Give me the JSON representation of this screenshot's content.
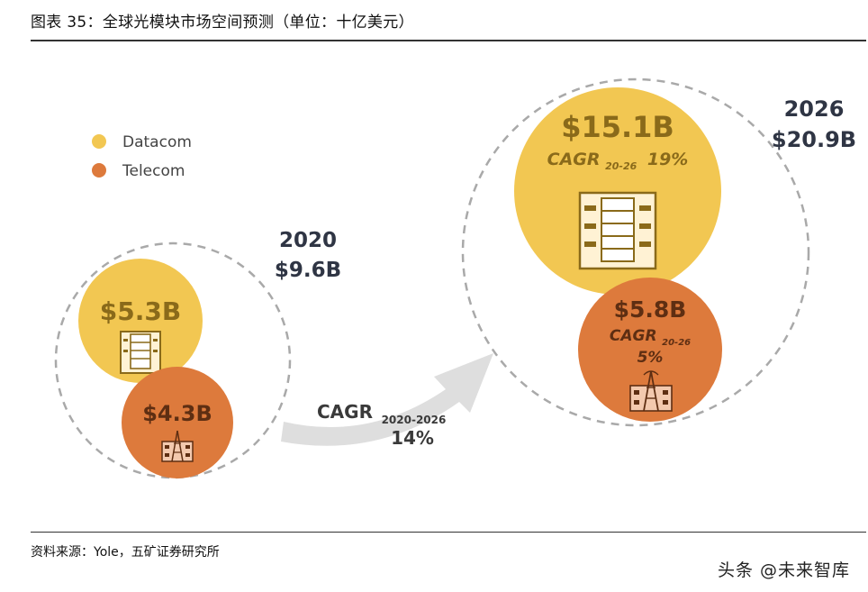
{
  "header": {
    "title": "图表 35：全球光模块市场空间预测（单位：十亿美元）"
  },
  "footer": {
    "source": "资料来源：Yole，五矿证券研究所",
    "watermark": "头条 @未来智库"
  },
  "colors": {
    "datacom": "#F2C752",
    "telecom": "#DD7A3C",
    "datacom_text": "#8A6A1A",
    "telecom_text": "#5E2E12",
    "title_text": "#2F3544",
    "dash": "#A9A9A9",
    "arrow": "#DEDEDE"
  },
  "chart_data": {
    "type": "bubble",
    "legend": {
      "placement": "top-left",
      "entries": [
        "Datacom",
        "Telecom"
      ]
    },
    "years": [
      {
        "year": "2020",
        "total": 9.6,
        "total_label": "$9.6B",
        "segments": [
          {
            "name": "Datacom",
            "value": 5.3,
            "label": "$5.3B",
            "icon": "server-building-icon"
          },
          {
            "name": "Telecom",
            "value": 4.3,
            "label": "$4.3B",
            "icon": "telecom-tower-icon"
          }
        ]
      },
      {
        "year": "2026",
        "total": 20.9,
        "total_label": "$20.9B",
        "segments": [
          {
            "name": "Datacom",
            "value": 15.1,
            "label": "$15.1B",
            "cagr_prefix": "CAGR",
            "cagr_sub": "20-26",
            "cagr_value": "19%",
            "icon": "server-building-icon"
          },
          {
            "name": "Telecom",
            "value": 5.8,
            "label": "$5.8B",
            "cagr_prefix": "CAGR",
            "cagr_sub": "20-26",
            "cagr_value": "5%",
            "icon": "telecom-tower-icon"
          }
        ]
      }
    ],
    "overall_cagr": {
      "prefix": "CAGR",
      "sub": "2020-2026",
      "value": "14%"
    }
  }
}
